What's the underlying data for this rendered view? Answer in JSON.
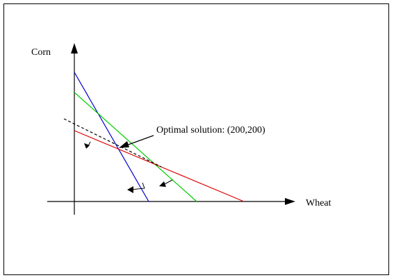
{
  "axes": {
    "y_label": "Corn",
    "x_label": "Wheat"
  },
  "annotation": {
    "text": "Optimal solution: (200,200)"
  },
  "colors": {
    "axis": "#000000",
    "frame": "#000000",
    "blue_constraint": "#0000cc",
    "green_constraint": "#00cc00",
    "red_constraint": "#dd0000",
    "objective_dashed": "#000000",
    "background": "#ffffff"
  },
  "lines": {
    "blue_constraint": "blue",
    "green_constraint": "green",
    "red_constraint": "red",
    "objective_line": "dashed"
  }
}
